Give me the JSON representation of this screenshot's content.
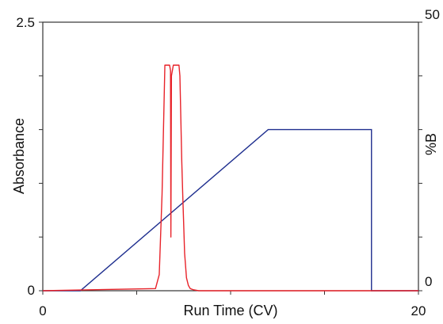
{
  "chart_data": {
    "type": "line",
    "title": "",
    "xlabel": "Run Time (CV)",
    "ylabel": "Absorbance",
    "y2label": "%B",
    "xlim": [
      0,
      20
    ],
    "ylim": [
      0,
      2.5
    ],
    "y2lim": [
      0,
      50
    ],
    "x_tick_labels": [
      "0",
      "20"
    ],
    "y_tick_labels": [
      "0",
      "2.5"
    ],
    "y2_tick_labels": [
      "0",
      "50"
    ],
    "x_minor_ticks": [
      5,
      10,
      15
    ],
    "y_minor_ticks": [
      0.5,
      1.0,
      1.5,
      2.0
    ],
    "y2_minor_ticks": [
      10,
      20,
      30,
      40
    ],
    "grid": false,
    "colors": {
      "absorbance": "#e8232a",
      "gradient": "#1f2f8f",
      "axis": "#333333"
    },
    "series": [
      {
        "axis": "y",
        "x": [
          0,
          6.0,
          6.2,
          6.35,
          6.5,
          6.6,
          6.65,
          6.75,
          6.8,
          6.82,
          6.85,
          6.95,
          7.05,
          7.15,
          7.2,
          7.25,
          7.3,
          7.4,
          7.45,
          7.55,
          7.65,
          7.75,
          7.85,
          8.0,
          8.3,
          20
        ],
        "y": [
          0,
          0.02,
          0.15,
          0.9,
          2.1,
          2.1,
          2.1,
          2.1,
          2.05,
          0.5,
          2.0,
          2.1,
          2.1,
          2.1,
          2.1,
          2.1,
          2.0,
          1.2,
          0.9,
          0.35,
          0.12,
          0.05,
          0.02,
          0.01,
          0,
          0
        ]
      },
      {
        "axis": "y2",
        "x": [
          0,
          2.0,
          12.0,
          17.5,
          17.5,
          20
        ],
        "y": [
          0,
          0,
          30,
          30,
          0,
          0
        ]
      }
    ]
  }
}
